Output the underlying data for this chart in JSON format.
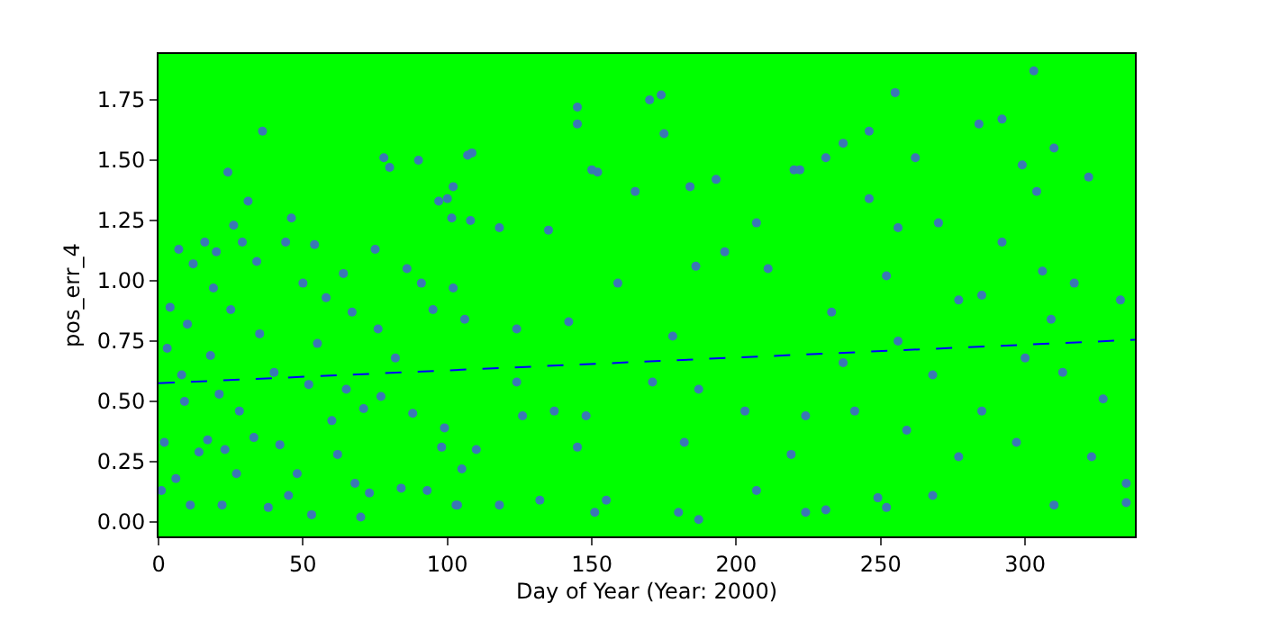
{
  "chart_data": {
    "type": "scatter",
    "xlabel": "Day of Year (Year: 2000)",
    "ylabel": "pos_err_4",
    "xlim": [
      0,
      338
    ],
    "xticks": [
      0,
      50,
      100,
      150,
      200,
      250,
      300
    ],
    "ylim": [
      -0.06,
      1.94
    ],
    "yticks": [
      {
        "value": 0,
        "label": "0.00"
      },
      {
        "value": 0.25,
        "label": "0.25"
      },
      {
        "value": 0.5,
        "label": "0.50"
      },
      {
        "value": 0.75,
        "label": "0.75"
      },
      {
        "value": 1,
        "label": "1.00"
      },
      {
        "value": 1.25,
        "label": "1.25"
      },
      {
        "value": 1.5,
        "label": "1.50"
      },
      {
        "value": 1.75,
        "label": "1.75"
      }
    ],
    "grid": false,
    "marker": "circle",
    "series": [
      {
        "color": "#3a78b5",
        "x": [
          1,
          2,
          3,
          4,
          6,
          7,
          8,
          9,
          10,
          11,
          12,
          14,
          16,
          17,
          18,
          19,
          20,
          21,
          22,
          23,
          24,
          25,
          26,
          27,
          28,
          29,
          31,
          33,
          34,
          35,
          36,
          38,
          40,
          42,
          44,
          45,
          46,
          48,
          50,
          52,
          53,
          54,
          55,
          58,
          60,
          62,
          64,
          65,
          67,
          68,
          70,
          71,
          73,
          75,
          76,
          77,
          78,
          80,
          82,
          84,
          86,
          88,
          90,
          91,
          93,
          95,
          97,
          99,
          100,
          102,
          103,
          105,
          106,
          108,
          110,
          174,
          170,
          145,
          145,
          108.5,
          107,
          150,
          152,
          184,
          175,
          165,
          193,
          220,
          102,
          151,
          187,
          180,
          132,
          118,
          103.5,
          155,
          207,
          231,
          124,
          178,
          137,
          187,
          207,
          211,
          196,
          159,
          142,
          148,
          145,
          126,
          98,
          124,
          171,
          182,
          203,
          224,
          135,
          186,
          219,
          118,
          101.5,
          303,
          255,
          246,
          284,
          292,
          237,
          310,
          262,
          322,
          231,
          246,
          256,
          270,
          299,
          304,
          222,
          224,
          252,
          310,
          249,
          268,
          335,
          335,
          333,
          323,
          277,
          285,
          300,
          256,
          237,
          268,
          252,
          277,
          309,
          327,
          313,
          297,
          259,
          241,
          285,
          317,
          233,
          306,
          292
        ],
        "values": [
          0.13,
          0.33,
          0.72,
          0.89,
          0.18,
          1.13,
          0.61,
          0.5,
          0.82,
          0.07,
          1.07,
          0.29,
          1.16,
          0.34,
          0.69,
          0.97,
          1.12,
          0.53,
          0.07,
          0.3,
          1.45,
          0.88,
          1.23,
          0.2,
          0.46,
          1.16,
          1.33,
          0.35,
          1.08,
          0.78,
          1.62,
          0.06,
          0.62,
          0.32,
          1.16,
          0.11,
          1.26,
          0.2,
          0.99,
          0.57,
          0.03,
          1.15,
          0.74,
          0.93,
          0.42,
          0.28,
          1.03,
          0.55,
          0.87,
          0.16,
          0.02,
          0.47,
          0.12,
          1.13,
          0.8,
          0.52,
          1.51,
          1.47,
          0.68,
          0.14,
          1.05,
          0.45,
          1.5,
          0.99,
          0.13,
          0.88,
          1.33,
          0.39,
          1.34,
          0.97,
          0.07,
          0.22,
          0.84,
          1.25,
          0.3,
          1.77,
          1.75,
          1.72,
          1.65,
          1.53,
          1.52,
          1.46,
          1.45,
          1.39,
          1.61,
          1.37,
          1.42,
          1.46,
          1.39,
          0.04,
          0.01,
          0.04,
          0.09,
          0.07,
          0.07,
          0.09,
          0.13,
          0.05,
          0.8,
          0.77,
          0.46,
          0.55,
          1.24,
          1.05,
          1.12,
          0.99,
          0.83,
          0.44,
          0.31,
          0.44,
          0.31,
          0.58,
          0.58,
          0.33,
          0.46,
          0.44,
          1.21,
          1.06,
          0.28,
          1.22,
          1.26,
          1.87,
          1.78,
          1.62,
          1.65,
          1.67,
          1.57,
          1.55,
          1.51,
          1.43,
          1.51,
          1.34,
          1.22,
          1.24,
          1.48,
          1.37,
          1.46,
          0.04,
          0.06,
          0.07,
          0.1,
          0.11,
          0.08,
          0.16,
          0.92,
          0.27,
          0.27,
          0.46,
          0.68,
          0.75,
          0.66,
          0.61,
          1.02,
          0.92,
          0.84,
          0.51,
          0.62,
          0.33,
          0.38,
          0.46,
          0.94,
          0.99,
          0.87,
          1.04,
          1.16
        ]
      },
      {
        "type": "line",
        "color": "#0000ff",
        "line_style": "dashed",
        "marker": "none",
        "x": [
          0,
          338
        ],
        "values": [
          0.575,
          0.755
        ]
      }
    ]
  }
}
